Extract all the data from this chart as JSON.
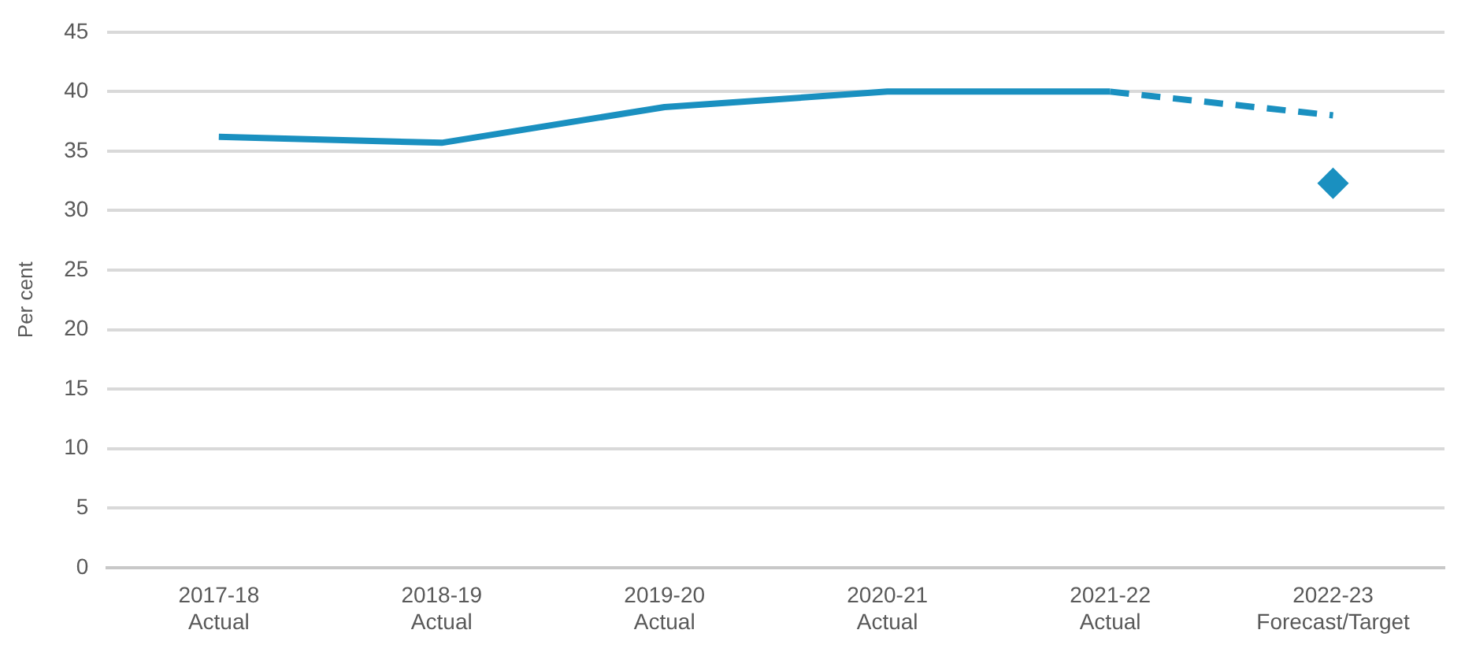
{
  "chart_data": {
    "type": "line",
    "ylabel": "Per cent",
    "categories": [
      "2017-18\nActual",
      "2018-19\nActual",
      "2019-20\nActual",
      "2020-21\nActual",
      "2021-22\nActual",
      "2022-23\nForecast/Target"
    ],
    "series": [
      {
        "color": "#1a90c0",
        "line_style": "solid",
        "marker": "none",
        "values": [
          36.2,
          35.7,
          38.7,
          40.0,
          40.0,
          null
        ]
      },
      {
        "color": "#1a90c0",
        "line_style": "dashed",
        "marker": "none",
        "values": [
          null,
          null,
          null,
          null,
          40.0,
          38.0
        ]
      },
      {
        "type": "scatter",
        "color": "#1a90c0",
        "marker": "diamond",
        "values": [
          null,
          null,
          null,
          null,
          null,
          32.3
        ]
      }
    ],
    "ylim": [
      0,
      45
    ],
    "yticks": [
      0,
      5,
      10,
      15,
      20,
      25,
      30,
      35,
      40,
      45
    ],
    "grid": "y",
    "legend": false
  }
}
